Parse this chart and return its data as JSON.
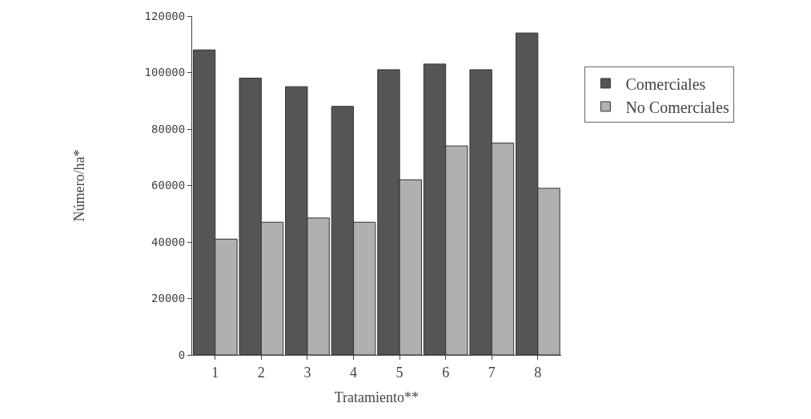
{
  "chart_data": {
    "type": "bar",
    "xlabel": "Tratamiento**",
    "ylabel": "Número/ha*",
    "categories": [
      "1",
      "2",
      "3",
      "4",
      "5",
      "6",
      "7",
      "8"
    ],
    "series": [
      {
        "name": "Comerciales",
        "color": "#555555",
        "values": [
          108000,
          98000,
          95000,
          88000,
          101000,
          103000,
          101000,
          114000
        ]
      },
      {
        "name": "No Comerciales",
        "color": "#b0b0b0",
        "values": [
          41000,
          47000,
          48500,
          47000,
          62000,
          74000,
          75000,
          59000
        ]
      }
    ],
    "ylim": [
      0,
      120000
    ],
    "yticks": [
      0,
      20000,
      40000,
      60000,
      80000,
      100000,
      120000
    ],
    "legend": "right"
  }
}
